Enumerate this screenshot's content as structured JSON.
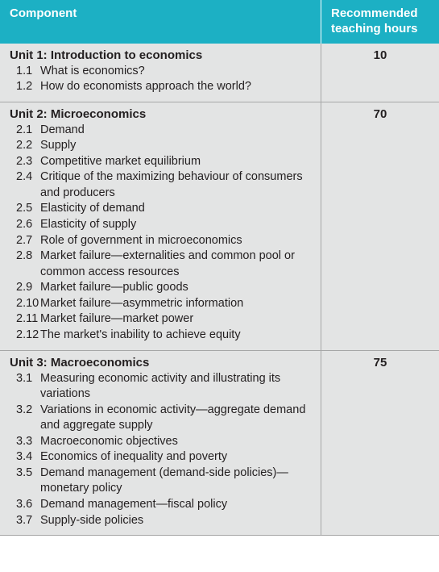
{
  "colors": {
    "header_bg": "#1cb0c4",
    "header_text": "#ffffff",
    "body_bg": "#e3e4e4",
    "border": "#a6a7a7",
    "text": "#231f20"
  },
  "columns": {
    "component": "Component",
    "hours": "Recommended teaching hours"
  },
  "units": [
    {
      "title": "Unit 1: Introduction to economics",
      "hours": "10",
      "topics": [
        {
          "num": "1.1",
          "label": "What is economics?"
        },
        {
          "num": "1.2",
          "label": "How do economists approach the world?"
        }
      ]
    },
    {
      "title": "Unit  2: Microeconomics",
      "hours": "70",
      "topics": [
        {
          "num": "2.1",
          "label": "Demand"
        },
        {
          "num": "2.2",
          "label": "Supply"
        },
        {
          "num": "2.3",
          "label": "Competitive market equilibrium"
        },
        {
          "num": "2.4",
          "label": "Critique of the maximizing behaviour of consumers and producers"
        },
        {
          "num": "2.5",
          "label": "Elasticity of demand"
        },
        {
          "num": "2.6",
          "label": "Elasticity of supply"
        },
        {
          "num": "2.7",
          "label": "Role of government in microeconomics"
        },
        {
          "num": "2.8",
          "label": "Market failure—externalities and common pool or common access resources"
        },
        {
          "num": "2.9",
          "label": "Market failure—public goods"
        },
        {
          "num": "2.10",
          "label": "Market failure—asymmetric information"
        },
        {
          "num": "2.11",
          "label": "Market failure—market power"
        },
        {
          "num": "2.12",
          "label": "The market's inability to achieve equity"
        }
      ]
    },
    {
      "title": "Unit 3: Macroeconomics",
      "hours": "75",
      "topics": [
        {
          "num": "3.1",
          "label": "Measuring economic activity and illustrating its variations"
        },
        {
          "num": "3.2",
          "label": "Variations in economic activity—aggregate demand and aggregate supply"
        },
        {
          "num": "3.3",
          "label": "Macroeconomic objectives"
        },
        {
          "num": "3.4",
          "label": "Economics of inequality and poverty"
        },
        {
          "num": "3.5",
          "label": "Demand management (demand-side policies)—monetary policy"
        },
        {
          "num": "3.6",
          "label": "Demand management—fiscal policy"
        },
        {
          "num": "3.7",
          "label": "Supply-side policies"
        }
      ]
    }
  ]
}
